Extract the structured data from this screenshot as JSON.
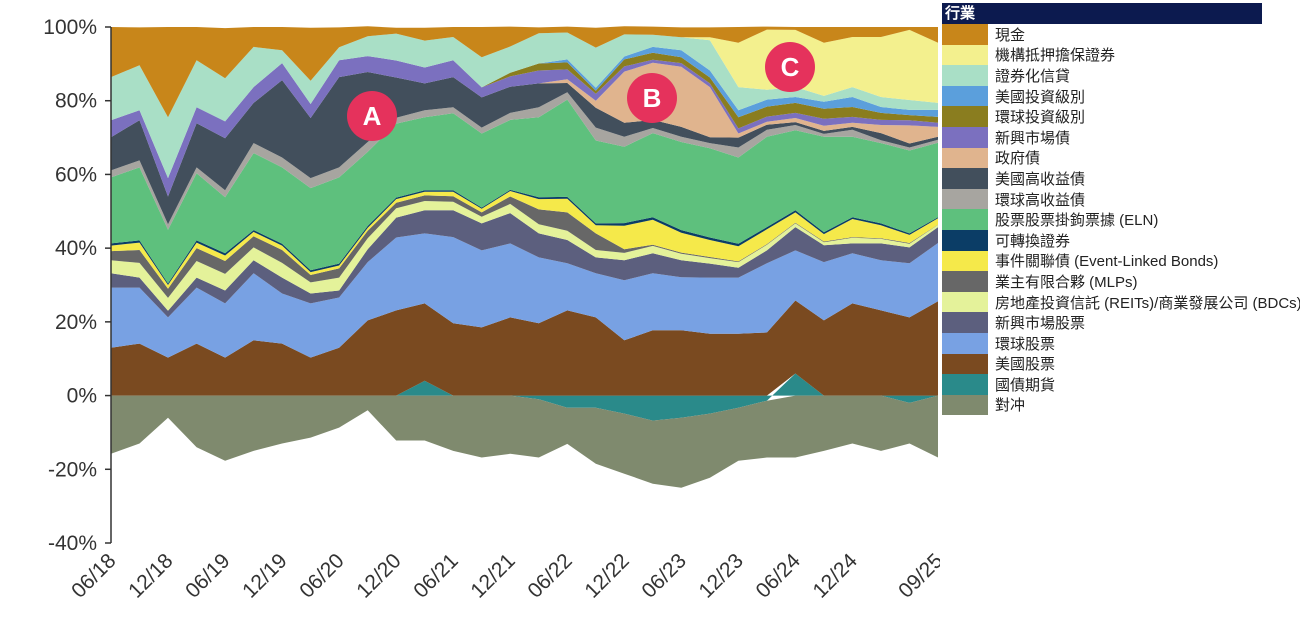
{
  "chart_data": {
    "type": "area",
    "stacked": true,
    "title": "",
    "xlabel": "",
    "ylabel": "",
    "ylim": [
      -40,
      100
    ],
    "y_ticks": [
      "100%",
      "80%",
      "60%",
      "40%",
      "20%",
      "0%",
      "-20%",
      "-40%"
    ],
    "y_tick_values": [
      100,
      80,
      60,
      40,
      20,
      0,
      -20,
      -40
    ],
    "x": [
      "06/18",
      "09/18",
      "12/18",
      "03/19",
      "06/19",
      "09/19",
      "12/19",
      "03/20",
      "06/20",
      "09/20",
      "12/20",
      "03/21",
      "06/21",
      "09/21",
      "12/21",
      "03/22",
      "06/22",
      "09/22",
      "12/22",
      "03/23",
      "06/23",
      "09/23",
      "12/23",
      "03/24",
      "06/24",
      "09/24",
      "12/24",
      "03/25",
      "06/25",
      "09/25"
    ],
    "x_tick_labels": [
      "06/18",
      "12/18",
      "06/19",
      "12/19",
      "06/20",
      "12/20",
      "06/21",
      "12/21",
      "06/22",
      "12/22",
      "06/23",
      "12/23",
      "06/24",
      "12/24",
      "09/25"
    ],
    "grid": false,
    "legend_position": "right",
    "legend_title": "行業",
    "annotations": [
      "A",
      "B",
      "C"
    ],
    "annotation_color": "#e5325c",
    "series": [
      {
        "name": "現金",
        "color": "#c8861a",
        "values": [
          13.6,
          10.3,
          24.5,
          9,
          13.6,
          5.4,
          6.3,
          14.4,
          5.4,
          2.7,
          1.6,
          3.5,
          2.7,
          8.2,
          5.4,
          1.6,
          1.6,
          5.4,
          2.2,
          2.2,
          2.7,
          2.7,
          4.3,
          0.8,
          0.8,
          4.3,
          2.7,
          2.7,
          0.8,
          4.3
        ]
      },
      {
        "name": "機構抵押擔保證券",
        "color": "#f3f08e",
        "values": [
          0,
          0,
          0,
          0,
          0,
          0,
          0,
          0,
          0,
          0,
          0,
          0,
          0,
          0,
          0,
          0,
          0,
          0,
          0,
          0,
          0,
          0.8,
          12,
          16.3,
          15.5,
          14.4,
          13.6,
          16.3,
          19,
          16.3
        ]
      },
      {
        "name": "證券化信貸",
        "color": "#a9dfc6",
        "values": [
          11.7,
          12.2,
          16.5,
          12.8,
          11.7,
          10.9,
          3.5,
          6.3,
          3.5,
          5.4,
          7.3,
          7.3,
          6.3,
          8.2,
          7.1,
          8.2,
          7.3,
          10.9,
          6,
          3.3,
          3.5,
          8.2,
          6.3,
          2.7,
          2.7,
          1.6,
          2.7,
          2.7,
          2.7,
          1.9
        ]
      },
      {
        "name": "美國投資級別",
        "color": "#5b9fdc",
        "values": [
          0,
          0,
          0,
          0,
          0,
          0,
          0,
          0,
          0,
          0,
          0,
          0,
          0,
          0,
          0,
          0,
          0.8,
          0.8,
          0.8,
          1.6,
          1.9,
          1.9,
          1.9,
          1.9,
          1.6,
          1.9,
          2.7,
          1.6,
          1.4,
          1.9
        ]
      },
      {
        "name": "環球投資級別",
        "color": "#8a7d1f",
        "values": [
          0,
          0,
          0,
          0,
          0,
          0,
          0,
          0,
          0,
          0,
          0,
          0,
          0,
          0,
          1,
          1.9,
          1.9,
          0.8,
          1.9,
          1.9,
          1.6,
          1.6,
          3,
          2.7,
          2.7,
          2.7,
          2.7,
          1.9,
          1.4,
          1.6
        ]
      },
      {
        "name": "新興市場債",
        "color": "#7b70bf",
        "values": [
          4.6,
          2.7,
          5,
          4.3,
          4.6,
          4.3,
          4.6,
          3.8,
          4.6,
          4.3,
          4.6,
          4.3,
          4.6,
          2.7,
          2.8,
          3.5,
          2.7,
          1.9,
          1.4,
          0.8,
          1,
          1,
          1.4,
          1.4,
          1.4,
          1.9,
          1.6,
          1.4,
          1.4,
          1.1
        ]
      },
      {
        "name": "政府債",
        "color": "#e0b48e",
        "values": [
          0,
          0,
          0,
          0,
          0,
          0,
          0,
          0,
          0,
          0,
          0,
          0,
          0,
          0,
          0,
          0,
          1,
          1.9,
          13.9,
          15.5,
          16.3,
          13.6,
          1.1,
          0.8,
          1.1,
          1.4,
          1.1,
          2.2,
          4.9,
          2.7
        ]
      },
      {
        "name": "美國高收益債",
        "color": "#424f5c",
        "values": [
          9,
          10.9,
          7.5,
          12,
          14.1,
          10.9,
          21,
          16.3,
          24.5,
          19,
          10.9,
          7.3,
          8.2,
          8.2,
          7.1,
          6.5,
          2.5,
          5.4,
          3.8,
          2.2,
          2.7,
          1.6,
          2.7,
          1.4,
          0.8,
          0.8,
          0.8,
          1.9,
          1.1,
          0.8
        ]
      },
      {
        "name": "環球高收益債",
        "color": "#a7a5a0",
        "values": [
          1.9,
          1.9,
          1.5,
          1.6,
          1.9,
          2.7,
          2.7,
          2.7,
          2.7,
          2.7,
          1.6,
          1.9,
          1.6,
          1.6,
          1.9,
          2.7,
          2,
          3.5,
          2.7,
          1.4,
          1.4,
          1.4,
          2.7,
          1.9,
          1.4,
          0.8,
          1.9,
          0.8,
          0.8,
          0.8
        ]
      },
      {
        "name": "股票股票掛鉤票據 (ELN)",
        "color": "#5ec07d",
        "values": [
          17.9,
          19.8,
          14.6,
          18.2,
          15.2,
          20.9,
          20.7,
          22.3,
          23.4,
          20.1,
          20.1,
          19.8,
          20.9,
          20.1,
          19,
          21.7,
          26.4,
          22.5,
          20.7,
          22.8,
          23.9,
          24.2,
          23.4,
          24.5,
          21.7,
          25.9,
          21.8,
          21.8,
          22.5,
          20.2
        ]
      },
      {
        "name": "可轉換證券",
        "color": "#0b3d66",
        "values": [
          0.6,
          0.6,
          0.4,
          0.6,
          0.6,
          0.5,
          0.5,
          0.5,
          0.5,
          0.5,
          0.4,
          0.4,
          0.4,
          0.3,
          0.3,
          0.5,
          0.5,
          0.5,
          0.7,
          0.7,
          0.7,
          0.7,
          0.7,
          0.6,
          0.6,
          0.5,
          0.5,
          0.5,
          0.4,
          0.3
        ]
      },
      {
        "name": "事件關聯債 (Event-Linked Bonds)",
        "color": "#f5e94a",
        "values": [
          1.5,
          2,
          1,
          1.5,
          1.5,
          1.2,
          1.2,
          0.8,
          0.8,
          0.8,
          1,
          1,
          1.2,
          1,
          1.5,
          2.8,
          3.7,
          2.2,
          6.4,
          6.8,
          5.4,
          4.6,
          4.1,
          4,
          2.8,
          2,
          4.9,
          3.5,
          2.2,
          1.7
        ]
      },
      {
        "name": "業主有限合夥 (MLPs)",
        "color": "#676767",
        "values": [
          2.5,
          3.5,
          2.5,
          3.5,
          3.5,
          3,
          3.5,
          2,
          2.5,
          2,
          1.5,
          1.5,
          1.5,
          1.2,
          2,
          4,
          5,
          4.5,
          1,
          0.3,
          0.3,
          0.3,
          0.2,
          0.2,
          0.2,
          0.2,
          0.2,
          0.2,
          0.2,
          0.1
        ]
      },
      {
        "name": "房地產投資信託 (REITs)/商業發展公司 (BDCs)",
        "color": "#e4f29a",
        "values": [
          3.5,
          4,
          3.5,
          4.5,
          4.5,
          3.5,
          4,
          3,
          3.5,
          3,
          2.5,
          2.5,
          2.3,
          1.8,
          2.5,
          2.5,
          2.5,
          2,
          2,
          2,
          1.8,
          1.5,
          1.5,
          1.5,
          1,
          0.8,
          1.5,
          1.2,
          1,
          0.6
        ]
      },
      {
        "name": "新興市場股票",
        "color": "#5c5f7e",
        "values": [
          3.9,
          2.7,
          1.8,
          2.7,
          3.5,
          3.5,
          4.3,
          2.7,
          1.9,
          3.5,
          5.4,
          6.3,
          7.3,
          7.3,
          8.2,
          6.5,
          6.3,
          4.3,
          5.4,
          5.4,
          4.6,
          3.8,
          2.7,
          3.5,
          6.3,
          4.6,
          2.7,
          4.6,
          4.3,
          4.3
        ]
      },
      {
        "name": "環球股票",
        "color": "#78a1e3",
        "values": [
          16.3,
          15.2,
          10.9,
          15.2,
          14.7,
          18.2,
          13.6,
          14.7,
          13.6,
          15.8,
          19.8,
          19,
          23.4,
          20.9,
          20.1,
          17.9,
          12.8,
          12,
          16.3,
          15.5,
          14.4,
          15.2,
          15.2,
          18.8,
          13.6,
          15.8,
          13.6,
          13.6,
          14.7,
          15.8
        ]
      },
      {
        "name": "美國股票",
        "color": "#7a4a20",
        "values": [
          13,
          14.1,
          10.3,
          14.1,
          10.3,
          15,
          14.1,
          10.3,
          13,
          20.4,
          23.1,
          21,
          19.6,
          18.5,
          21.2,
          19.6,
          23.1,
          21.2,
          15,
          17.7,
          17.7,
          16.8,
          16.8,
          17.1,
          19.8,
          20.4,
          25,
          23.1,
          21.2,
          25.6
        ]
      },
      {
        "name": "國債期貨",
        "color": "#2a8a8a",
        "values": [
          0,
          0,
          0,
          0,
          0,
          0,
          0,
          0,
          0,
          0,
          0,
          4,
          0,
          0,
          0,
          -1,
          -3.3,
          -3.3,
          -4.9,
          -6.8,
          -6,
          -4.9,
          -3.3,
          -1.4,
          6,
          0,
          0,
          0,
          -2,
          0
        ]
      },
      {
        "name": "對冲",
        "color": "#7f8a6e",
        "values": [
          -15.8,
          -13,
          -6,
          -14,
          -17.7,
          -15,
          -13,
          -11.4,
          -8.7,
          -4,
          -12.2,
          -12.2,
          -15,
          -16.8,
          -15.8,
          -15.8,
          -9.8,
          -15.2,
          -16.3,
          -17.1,
          -19,
          -17.4,
          -14.4,
          -15.4,
          -16.8,
          -15,
          -13,
          -15,
          -11,
          -16.8
        ]
      }
    ]
  }
}
